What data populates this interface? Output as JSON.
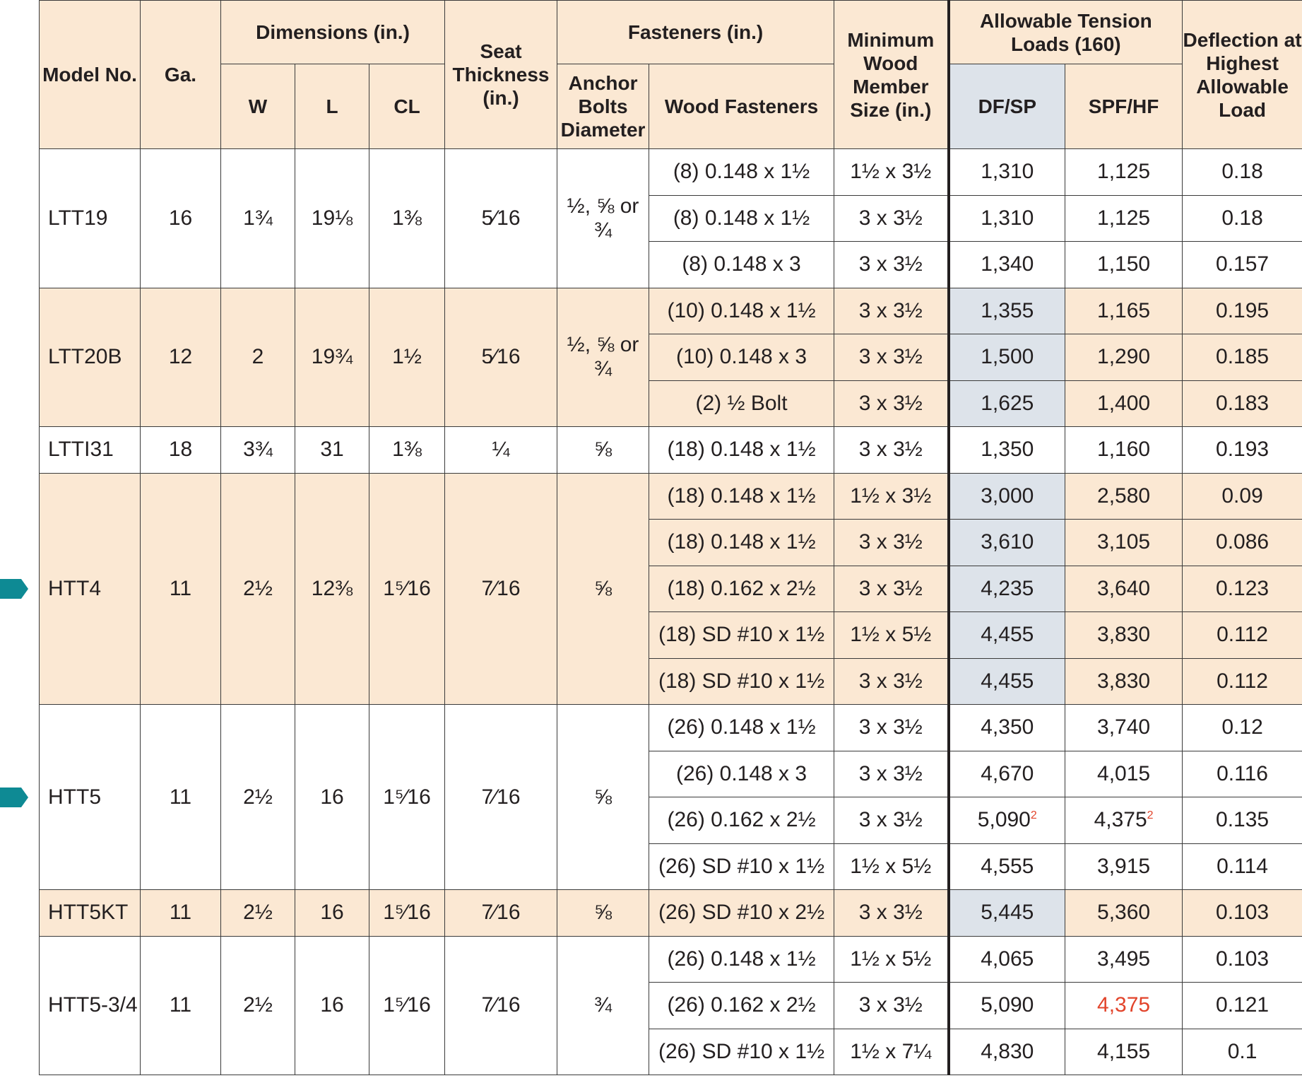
{
  "headers": {
    "model_no": "Model No.",
    "ga": "Ga.",
    "dimensions": "Dimensions (in.)",
    "w": "W",
    "l": "L",
    "cl": "CL",
    "seat_thickness": "Seat Thickness (in.)",
    "fasteners": "Fasteners (in.)",
    "anchor_bolts": "Anchor Bolts Diameter",
    "wood_fasteners": "Wood Fasteners",
    "min_wood_member": "Minimum Wood Member Size (in.)",
    "allowable_tension": "Allowable Tension Loads (160)",
    "dfsp": "DF/SP",
    "spfhf": "SPF/HF",
    "deflection": "Deflection at Highest Allowable Load"
  },
  "groups": [
    {
      "model": "LTT19",
      "ga": "16",
      "w": "1¾",
      "l": "19⅛",
      "cl": "1⅜",
      "seat": "5⁄16",
      "anchor": "½, ⅝ or ¾",
      "shaded": false,
      "marker": false,
      "rows": [
        {
          "wood": "(8) 0.148 x 1½",
          "member": "1½ x 3½",
          "dfsp": "1,310",
          "dfsp_note": "",
          "spf": "1,125",
          "spf_note": "",
          "spf_red": false,
          "defl": "0.18"
        },
        {
          "wood": "(8) 0.148 x 1½",
          "member": "3 x 3½",
          "dfsp": "1,310",
          "dfsp_note": "",
          "spf": "1,125",
          "spf_note": "",
          "spf_red": false,
          "defl": "0.18"
        },
        {
          "wood": "(8) 0.148 x 3",
          "member": "3 x 3½",
          "dfsp": "1,340",
          "dfsp_note": "",
          "spf": "1,150",
          "spf_note": "",
          "spf_red": false,
          "defl": "0.157"
        }
      ]
    },
    {
      "model": "LTT20B",
      "ga": "12",
      "w": "2",
      "l": "19¾",
      "cl": "1½",
      "seat": "5⁄16",
      "anchor": "½, ⅝ or ¾",
      "shaded": true,
      "marker": false,
      "rows": [
        {
          "wood": "(10) 0.148 x 1½",
          "member": "3 x 3½",
          "dfsp": "1,355",
          "dfsp_note": "",
          "spf": "1,165",
          "spf_note": "",
          "spf_red": false,
          "defl": "0.195"
        },
        {
          "wood": "(10) 0.148 x 3",
          "member": "3 x 3½",
          "dfsp": "1,500",
          "dfsp_note": "",
          "spf": "1,290",
          "spf_note": "",
          "spf_red": false,
          "defl": "0.185"
        },
        {
          "wood": "(2) ½ Bolt",
          "member": "3 x 3½",
          "dfsp": "1,625",
          "dfsp_note": "",
          "spf": "1,400",
          "spf_note": "",
          "spf_red": false,
          "defl": "0.183"
        }
      ]
    },
    {
      "model": "LTTI31",
      "ga": "18",
      "w": "3¾",
      "l": "31",
      "cl": "1⅜",
      "seat": "¼",
      "anchor": "⅝",
      "shaded": false,
      "marker": false,
      "rows": [
        {
          "wood": "(18) 0.148 x 1½",
          "member": "3 x 3½",
          "dfsp": "1,350",
          "dfsp_note": "",
          "spf": "1,160",
          "spf_note": "",
          "spf_red": false,
          "defl": "0.193"
        }
      ]
    },
    {
      "model": "HTT4",
      "ga": "11",
      "w": "2½",
      "l": "12⅜",
      "cl": "1⁵⁄16",
      "seat": "7⁄16",
      "anchor": "⅝",
      "shaded": true,
      "marker": true,
      "rows": [
        {
          "wood": "(18) 0.148 x 1½",
          "member": "1½ x 3½",
          "dfsp": "3,000",
          "dfsp_note": "",
          "spf": "2,580",
          "spf_note": "",
          "spf_red": false,
          "defl": "0.09"
        },
        {
          "wood": "(18) 0.148 x 1½",
          "member": "3 x 3½",
          "dfsp": "3,610",
          "dfsp_note": "",
          "spf": "3,105",
          "spf_note": "",
          "spf_red": false,
          "defl": "0.086"
        },
        {
          "wood": "(18) 0.162 x 2½",
          "member": "3 x 3½",
          "dfsp": "4,235",
          "dfsp_note": "",
          "spf": "3,640",
          "spf_note": "",
          "spf_red": false,
          "defl": "0.123"
        },
        {
          "wood": "(18) SD #10 x 1½",
          "member": "1½ x 5½",
          "dfsp": "4,455",
          "dfsp_note": "",
          "spf": "3,830",
          "spf_note": "",
          "spf_red": false,
          "defl": "0.112"
        },
        {
          "wood": "(18) SD #10 x 1½",
          "member": "3 x 3½",
          "dfsp": "4,455",
          "dfsp_note": "",
          "spf": "3,830",
          "spf_note": "",
          "spf_red": false,
          "defl": "0.112"
        }
      ]
    },
    {
      "model": "HTT5",
      "ga": "11",
      "w": "2½",
      "l": "16",
      "cl": "1⁵⁄16",
      "seat": "7⁄16",
      "anchor": "⅝",
      "shaded": false,
      "marker": true,
      "rows": [
        {
          "wood": "(26) 0.148 x 1½",
          "member": "3 x 3½",
          "dfsp": "4,350",
          "dfsp_note": "",
          "spf": "3,740",
          "spf_note": "",
          "spf_red": false,
          "defl": "0.12"
        },
        {
          "wood": "(26) 0.148 x 3",
          "member": "3 x 3½",
          "dfsp": "4,670",
          "dfsp_note": "",
          "spf": "4,015",
          "spf_note": "",
          "spf_red": false,
          "defl": "0.116"
        },
        {
          "wood": "(26) 0.162 x 2½",
          "member": "3 x 3½",
          "dfsp": "5,090",
          "dfsp_note": "2",
          "spf": "4,375",
          "spf_note": "2",
          "spf_red": false,
          "defl": "0.135"
        },
        {
          "wood": "(26) SD #10 x 1½",
          "member": "1½ x 5½",
          "dfsp": "4,555",
          "dfsp_note": "",
          "spf": "3,915",
          "spf_note": "",
          "spf_red": false,
          "defl": "0.114"
        }
      ]
    },
    {
      "model": "HTT5KT",
      "ga": "11",
      "w": "2½",
      "l": "16",
      "cl": "1⁵⁄16",
      "seat": "7⁄16",
      "anchor": "⅝",
      "shaded": true,
      "marker": false,
      "rows": [
        {
          "wood": "(26) SD #10 x 2½",
          "member": "3 x 3½",
          "dfsp": "5,445",
          "dfsp_note": "",
          "spf": "5,360",
          "spf_note": "",
          "spf_red": false,
          "defl": "0.103"
        }
      ]
    },
    {
      "model": "HTT5-3/4",
      "ga": "11",
      "w": "2½",
      "l": "16",
      "cl": "1⁵⁄16",
      "seat": "7⁄16",
      "anchor": "¾",
      "shaded": false,
      "marker": false,
      "rows": [
        {
          "wood": "(26) 0.148 x 1½",
          "member": "1½ x 5½",
          "dfsp": "4,065",
          "dfsp_note": "",
          "spf": "3,495",
          "spf_note": "",
          "spf_red": false,
          "defl": "0.103"
        },
        {
          "wood": "(26) 0.162 x 2½",
          "member": "3 x 3½",
          "dfsp": "5,090",
          "dfsp_note": "",
          "spf": "4,375",
          "spf_note": "",
          "spf_red": true,
          "defl": "0.121"
        },
        {
          "wood": "(26) SD #10 x 1½",
          "member": "1½ x 7¼",
          "dfsp": "4,830",
          "dfsp_note": "",
          "spf": "4,155",
          "spf_note": "",
          "spf_red": false,
          "defl": "0.1"
        }
      ]
    }
  ],
  "colors": {
    "header_fill": "#fbe8d3",
    "dfsp_fill": "#dde3ea",
    "marker": "#0e8a94",
    "note_red": "#e2442b"
  },
  "icons": {
    "row_marker": "teal-arrow-marker-icon"
  }
}
